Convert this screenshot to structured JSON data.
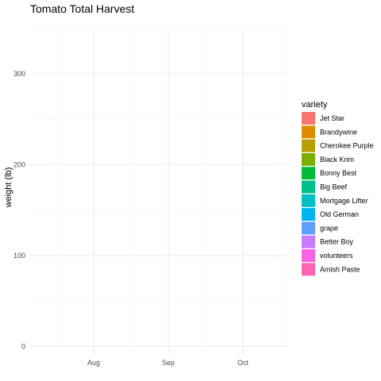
{
  "chart_data": {
    "type": "area",
    "title": "Tomato Total Harvest",
    "xlabel": "",
    "ylabel": "weight (lb)",
    "x_ticks": [
      "Aug",
      "Sep",
      "Oct"
    ],
    "y_ticks": [
      0,
      100,
      200,
      300
    ],
    "ylim": [
      -10,
      360
    ],
    "grid": true,
    "legend": {
      "title": "variety",
      "position": "right",
      "entries": [
        {
          "name": "Jet Star",
          "color": "#F8766D"
        },
        {
          "name": "Brandywine",
          "color": "#DE8C00"
        },
        {
          "name": "Cherokee Purple",
          "color": "#B79F00"
        },
        {
          "name": "Black Krim",
          "color": "#7CAE00"
        },
        {
          "name": "Bonny Best",
          "color": "#00BA38"
        },
        {
          "name": "Big Beef",
          "color": "#00C08B"
        },
        {
          "name": "Mortgage Lifter",
          "color": "#00BFC4"
        },
        {
          "name": "Old German",
          "color": "#00B4F0"
        },
        {
          "name": "grape",
          "color": "#619CFF"
        },
        {
          "name": "Better Boy",
          "color": "#C77CFF"
        },
        {
          "name": "volunteers",
          "color": "#F564E3"
        },
        {
          "name": "Amish Paste",
          "color": "#FF64B0"
        }
      ]
    },
    "series": []
  }
}
